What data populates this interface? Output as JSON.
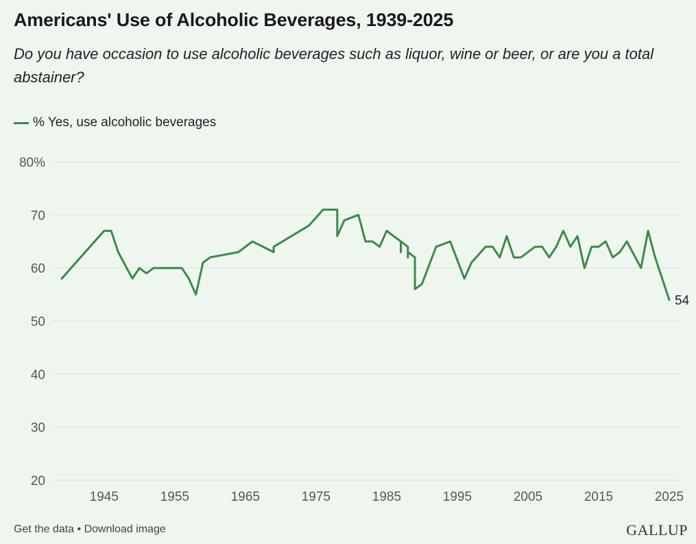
{
  "header": {
    "title": "Americans' Use of Alcoholic Beverages, 1939-2025",
    "subtitle": "Do you have occasion to use alcoholic beverages such as liquor, wine or beer, or are you a total abstainer?"
  },
  "footer": {
    "get_data": "Get the data",
    "separator": " • ",
    "download": "Download image",
    "logo": "GALLUP"
  },
  "colors": {
    "line": "#3a8a4a",
    "grid": "#d9e0d9",
    "axis_text": "#555555"
  },
  "chart_data": {
    "type": "line",
    "title": "Americans' Use of Alcoholic Beverages, 1939-2025",
    "xlabel": "",
    "ylabel": "",
    "ylim": [
      20,
      80
    ],
    "xlim": [
      1939,
      2025
    ],
    "grid": true,
    "legend_position": "top-left",
    "yticks": [
      20,
      30,
      40,
      50,
      60,
      70,
      80
    ],
    "ytick_labels": [
      "20",
      "30",
      "40",
      "50",
      "60",
      "70",
      "80%"
    ],
    "xticks": [
      1945,
      1955,
      1965,
      1975,
      1985,
      1995,
      2005,
      2015,
      2025
    ],
    "end_label": "54",
    "series": [
      {
        "name": "% Yes, use alcoholic beverages",
        "x": [
          1939,
          1945,
          1946,
          1947,
          1949,
          1950,
          1951,
          1952,
          1956,
          1957,
          1958,
          1959,
          1960,
          1964,
          1966,
          1969,
          1969,
          1974,
          1976,
          1978,
          1978,
          1979,
          1981,
          1982,
          1983,
          1984,
          1985,
          1987,
          1987,
          1987,
          1988,
          1988,
          1988,
          1989,
          1989,
          1990,
          1992,
          1994,
          1996,
          1997,
          1999,
          2000,
          2001,
          2002,
          2003,
          2004,
          2006,
          2007,
          2008,
          2009,
          2010,
          2011,
          2012,
          2013,
          2014,
          2015,
          2016,
          2017,
          2018,
          2019,
          2021,
          2022,
          2023,
          2025
        ],
        "y": [
          58,
          67,
          67,
          63,
          58,
          60,
          59,
          60,
          60,
          58,
          55,
          61,
          62,
          63,
          65,
          63,
          64,
          68,
          71,
          71,
          66,
          69,
          70,
          65,
          65,
          64,
          67,
          65,
          63,
          65,
          64,
          62,
          63,
          62,
          56,
          57,
          64,
          65,
          58,
          61,
          64,
          64,
          62,
          66,
          62,
          62,
          64,
          64,
          62,
          64,
          67,
          64,
          66,
          60,
          64,
          64,
          65,
          62,
          63,
          65,
          60,
          67,
          62,
          54
        ]
      }
    ]
  }
}
